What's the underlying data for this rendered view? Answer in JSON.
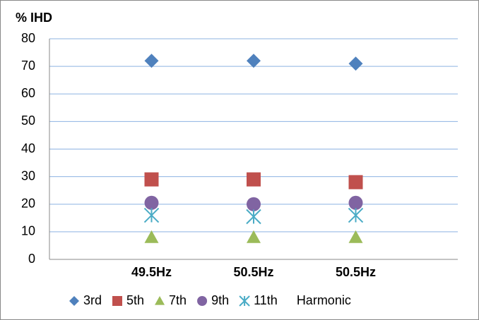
{
  "chart_data": {
    "type": "scatter",
    "y_label": "% IHD",
    "categories": [
      "49.5Hz",
      "50.5Hz",
      "50.5Hz"
    ],
    "series": [
      {
        "name": "3rd",
        "color": "#4f81bd",
        "marker": "diamond",
        "values": [
          72,
          72,
          71
        ]
      },
      {
        "name": "5th",
        "color": "#c0504d",
        "marker": "square",
        "values": [
          29,
          29,
          28
        ]
      },
      {
        "name": "7th",
        "color": "#9bbb59",
        "marker": "triangle",
        "values": [
          8,
          8,
          8
        ]
      },
      {
        "name": "9th",
        "color": "#8064a2",
        "marker": "circle",
        "values": [
          20.5,
          20,
          20.5
        ]
      },
      {
        "name": "11th",
        "color": "#4bacc6",
        "marker": "star",
        "values": [
          16,
          15.5,
          16
        ]
      }
    ],
    "legend_note": "Harmonic",
    "ylim": [
      0,
      80
    ],
    "yticks": [
      0,
      10,
      20,
      30,
      40,
      50,
      60,
      70,
      80
    ],
    "grid": true
  }
}
